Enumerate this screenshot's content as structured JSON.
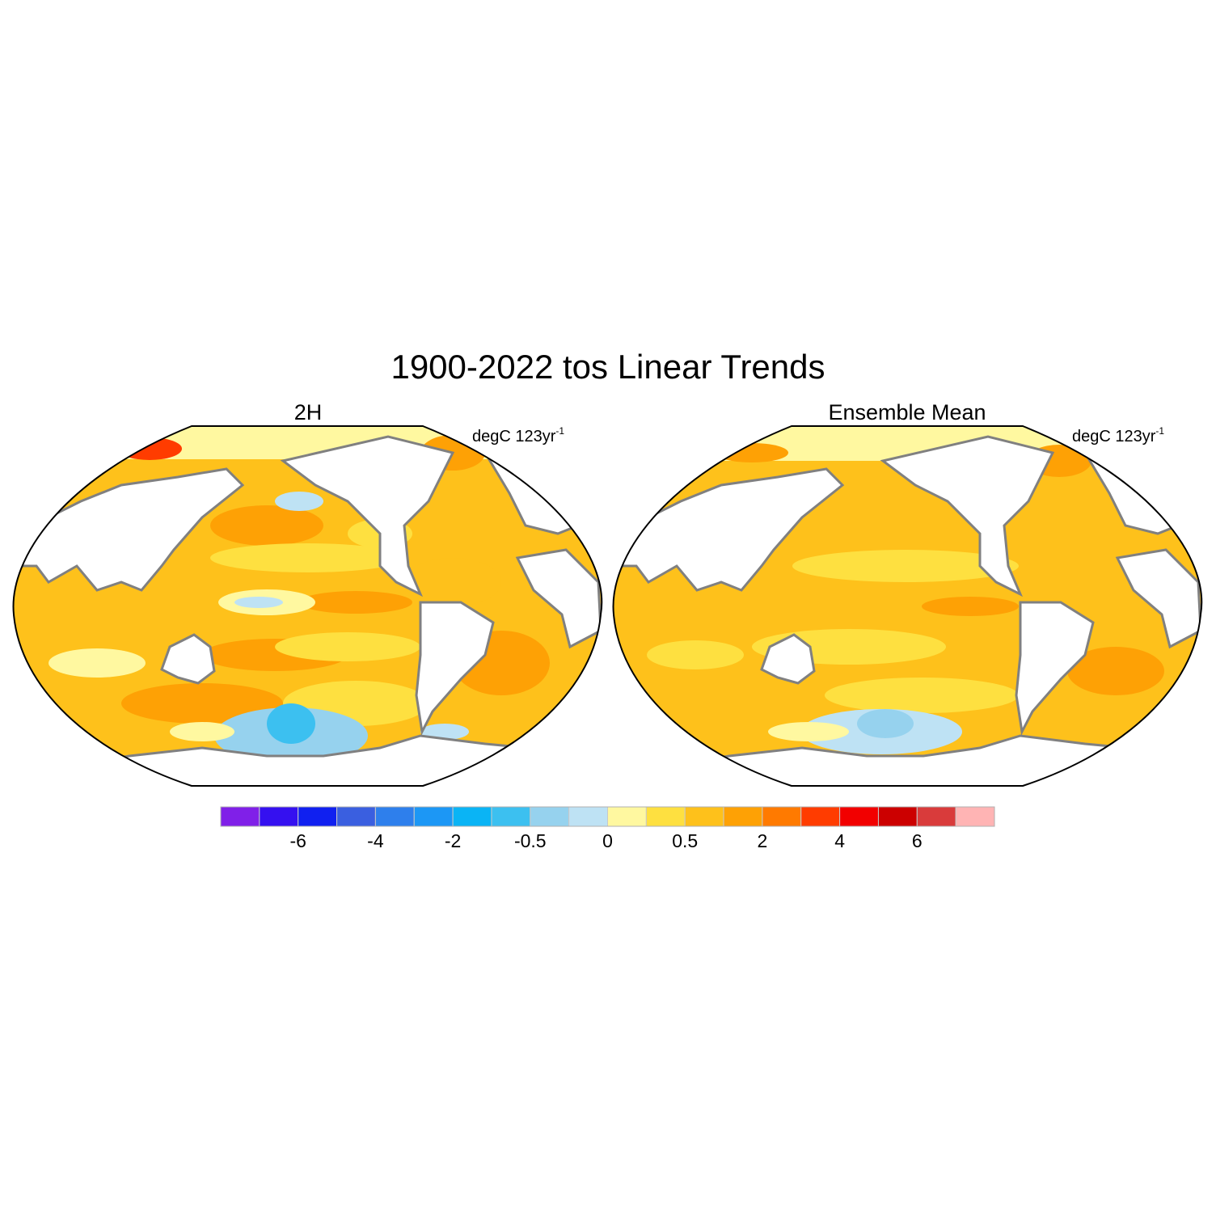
{
  "chart_data": {
    "type": "heatmap",
    "title": "1900-2022 tos Linear Trends",
    "units": {
      "base": "degC 123yr",
      "exponent": "-1"
    },
    "projection": "Robinson (Pacific-centred)",
    "panels": [
      {
        "title": "2H",
        "dominant_range": "0.5 to 2",
        "features": [
          {
            "region": "Southern Ocean / Ross Sea",
            "range": "-2 to -0.5"
          },
          {
            "region": "Equatorial central Pacific",
            "range": "-0.5 to 0"
          },
          {
            "region": "Bering Sea",
            "range": "-0.5 to 0"
          },
          {
            "region": "Arctic / Barents Sea",
            "range": "4 to 5"
          },
          {
            "region": "Subtropical North Pacific",
            "range": "1 to 2"
          }
        ]
      },
      {
        "title": "Ensemble Mean",
        "dominant_range": "0.5 to 1",
        "features": [
          {
            "region": "Southern Ocean / Ross Sea",
            "range": "-1 to 0"
          },
          {
            "region": "Arctic / Barents Sea",
            "range": "2 to 3"
          },
          {
            "region": "Eastern equatorial Pacific",
            "range": "1 to 2"
          }
        ]
      }
    ],
    "colorbar": {
      "tick_labels": [
        "-6",
        "-4",
        "-2",
        "-0.5",
        "0",
        "0.5",
        "2",
        "4",
        "6"
      ],
      "colors": [
        "#8020E8",
        "#3510F0",
        "#1020F0",
        "#3A5FE0",
        "#2E7FEC",
        "#1C97F5",
        "#0AB4F5",
        "#3CC0F0",
        "#96D2EE",
        "#BEE2F4",
        "#FFF8A0",
        "#FEE040",
        "#FEC11B",
        "#FEA105",
        "#FF7A00",
        "#FF3C00",
        "#F20000",
        "#CC0000",
        "#D93B3B",
        "#FFB4B4"
      ]
    }
  }
}
